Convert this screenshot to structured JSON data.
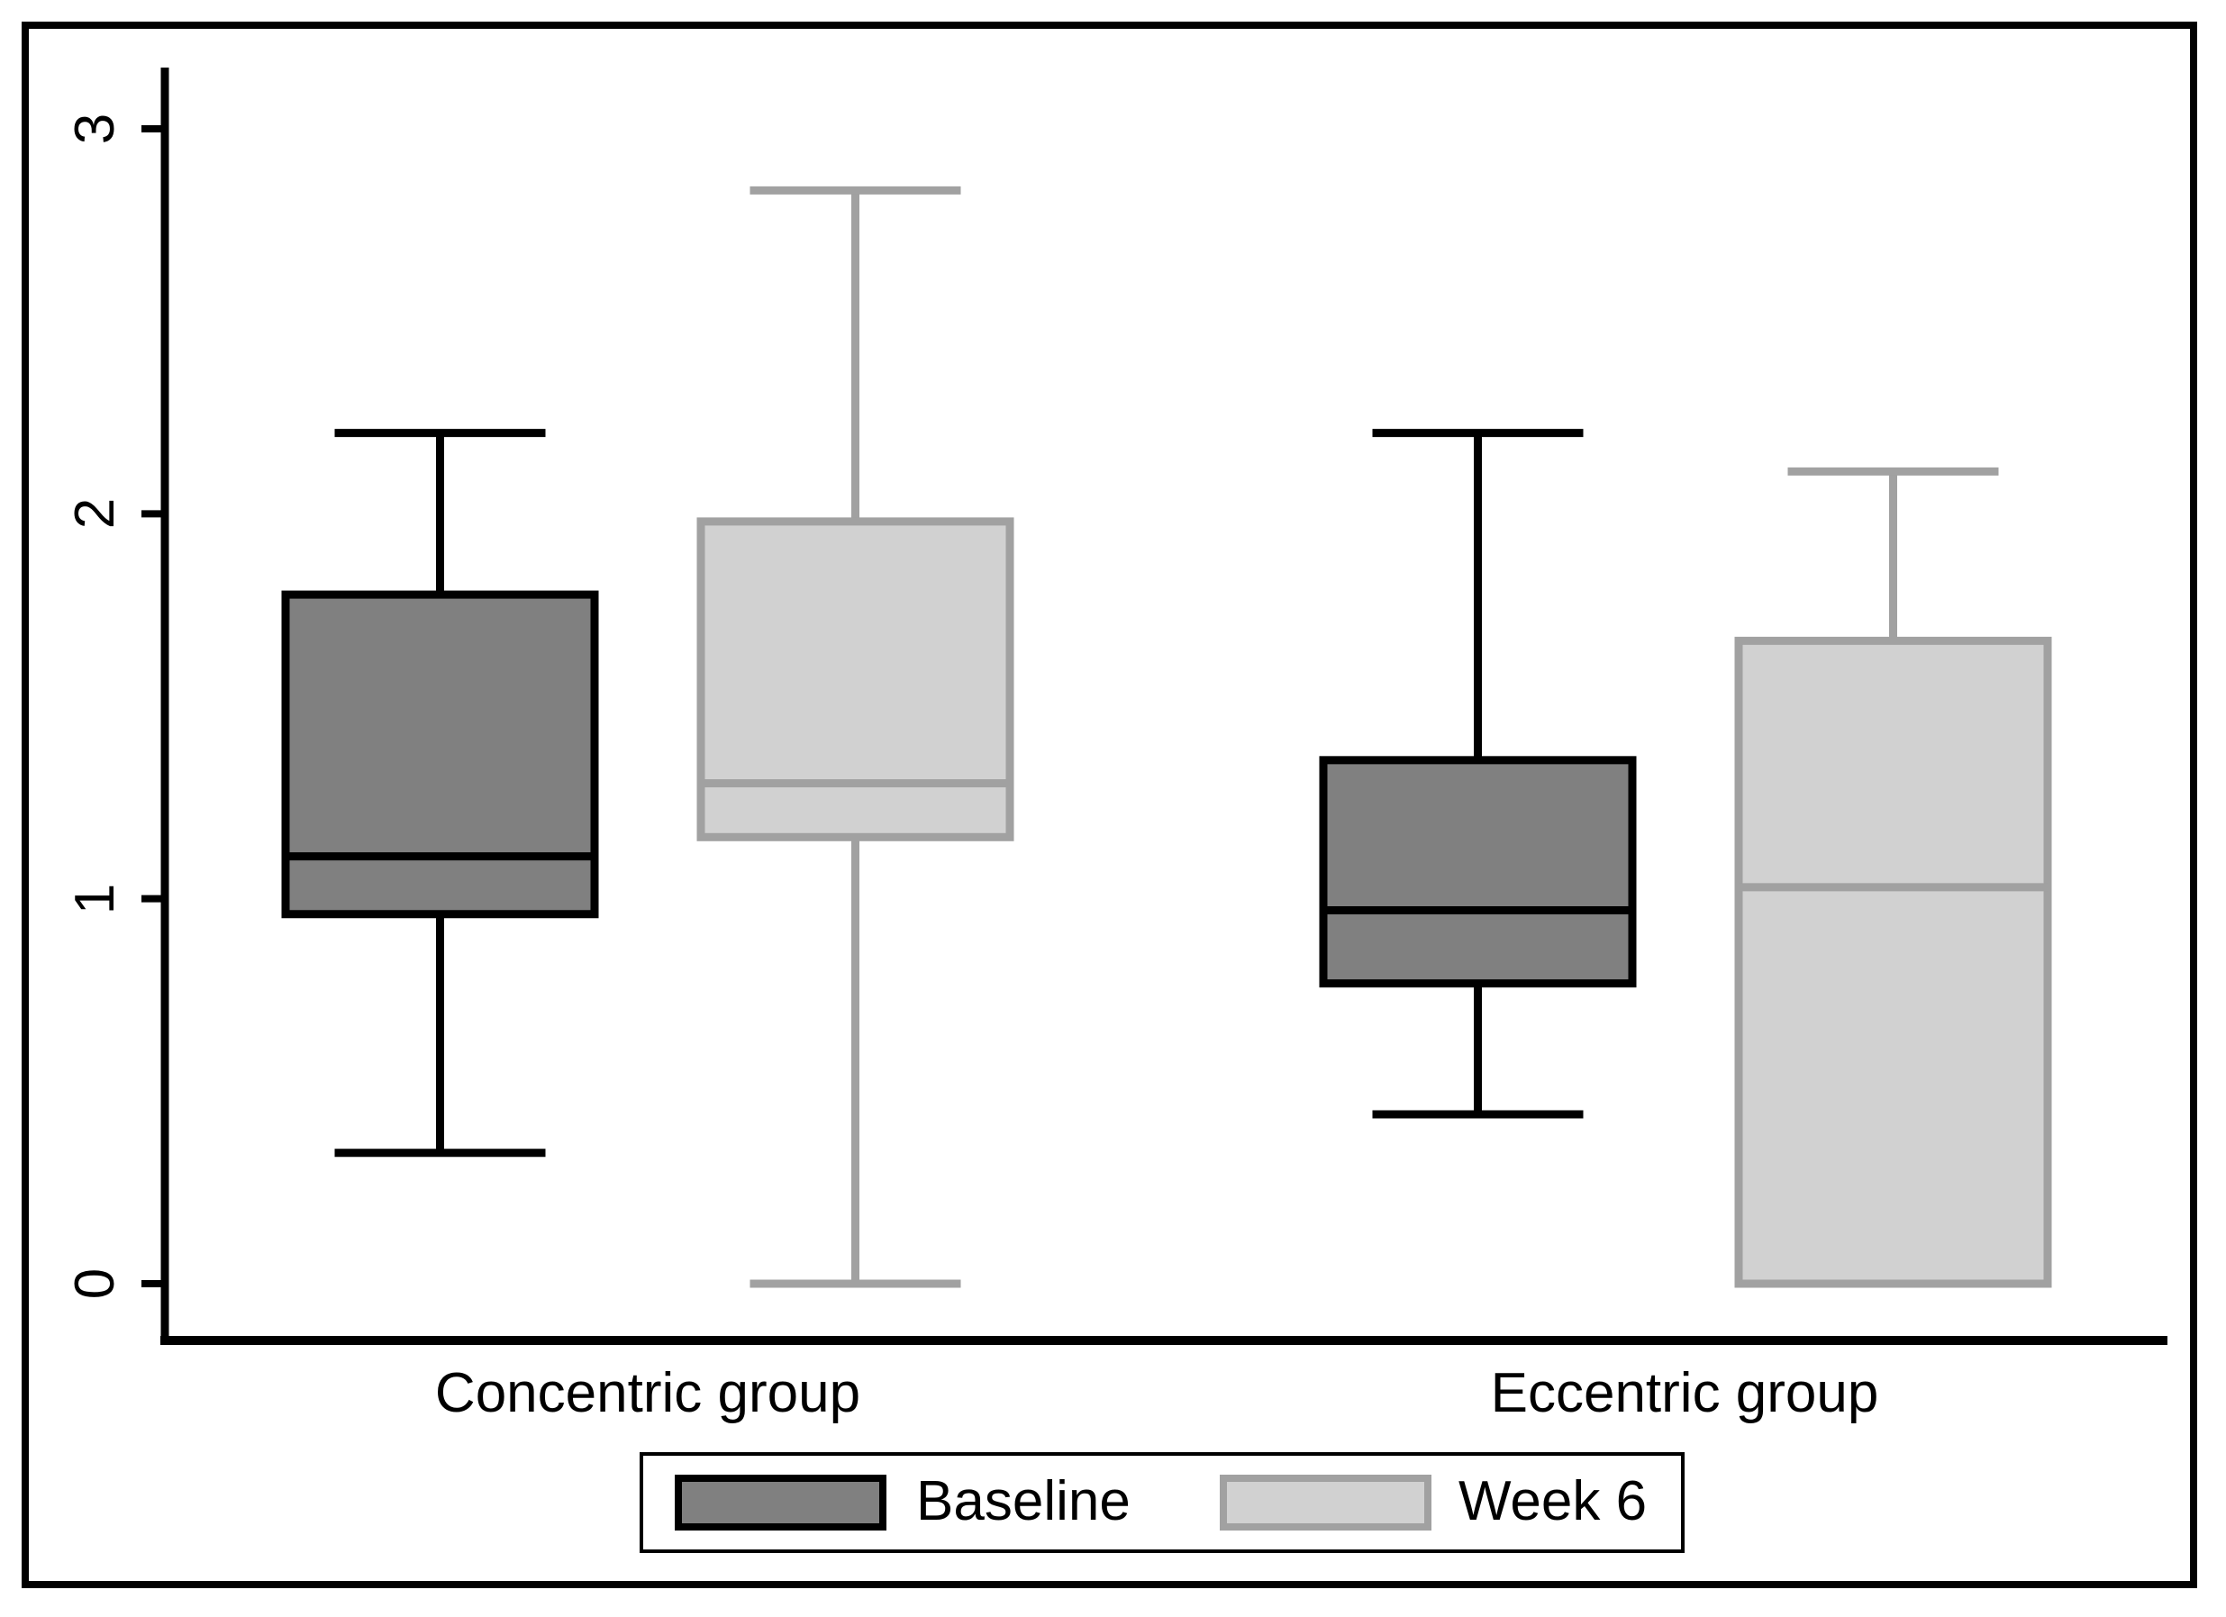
{
  "figure": {
    "background": "#ffffff",
    "border_color": "#000000"
  },
  "chart_data": {
    "type": "box",
    "title": "",
    "xlabel": "",
    "ylabel": "",
    "ylim": [
      0,
      3
    ],
    "yticks": [
      "3",
      "2",
      "1",
      "0"
    ],
    "grid": false,
    "legend_position": "bottom-center",
    "groups": [
      "Concentric group",
      "Eccentric group"
    ],
    "series": [
      {
        "name": "Baseline",
        "fill": "#808080",
        "stroke": "#000000",
        "stats": [
          {
            "group": "Concentric group",
            "min": 0.34,
            "q1": 0.96,
            "median": 1.11,
            "q3": 1.79,
            "max": 2.21
          },
          {
            "group": "Eccentric group",
            "min": 0.44,
            "q1": 0.78,
            "median": 0.97,
            "q3": 1.36,
            "max": 2.21
          }
        ]
      },
      {
        "name": "Week 6",
        "fill": "#d1d1d1",
        "stroke": "#a1a1a1",
        "stats": [
          {
            "group": "Concentric group",
            "min": 0.0,
            "q1": 1.16,
            "median": 1.3,
            "q3": 1.98,
            "max": 2.84
          },
          {
            "group": "Eccentric group",
            "min": 0.0,
            "q1": 0.0,
            "median": 1.03,
            "q3": 1.67,
            "max": 2.11
          }
        ]
      }
    ]
  }
}
